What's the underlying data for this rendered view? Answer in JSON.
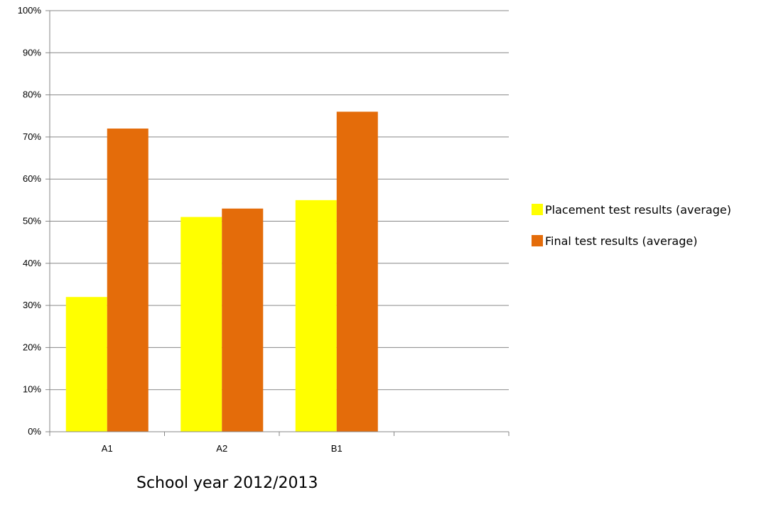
{
  "chart_data": {
    "type": "bar",
    "categories": [
      "A1",
      "A2",
      "B1"
    ],
    "series": [
      {
        "name": "Placement test results (average)",
        "values": [
          32,
          51,
          55
        ],
        "color": "#ffff00"
      },
      {
        "name": "Final test results (average)",
        "values": [
          72,
          53,
          76
        ],
        "color": "#e46c0a"
      }
    ],
    "y_ticks": [
      "0%",
      "10%",
      "20%",
      "30%",
      "40%",
      "50%",
      "60%",
      "70%",
      "80%",
      "90%",
      "100%"
    ],
    "ylim": [
      0,
      100
    ],
    "grid": true,
    "legend_position": "right",
    "xlabel": "School year 2012/2013"
  }
}
